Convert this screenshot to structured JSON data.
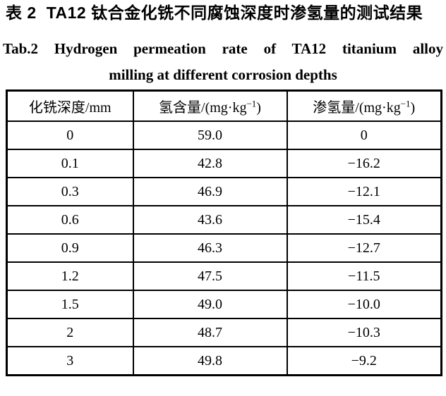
{
  "caption": {
    "zh_label": "表 2",
    "zh_title": "TA12 钛合金化铣不同腐蚀深度时渗氢量的测试结果",
    "en_line1": "Tab.2 Hydrogen permeation rate of TA12 titanium alloy",
    "en_line2": "milling at different corrosion depths"
  },
  "table": {
    "columns": [
      {
        "base": "化铣深度/mm",
        "exp": "",
        "close": ""
      },
      {
        "base": "氢含量/(mg·kg",
        "exp": "−1",
        "close": ")"
      },
      {
        "base": "渗氢量/(mg·kg",
        "exp": "−1",
        "close": ")"
      }
    ],
    "rows": [
      {
        "depth": "0",
        "hydrogen_content": "59.0",
        "permeation": "0"
      },
      {
        "depth": "0.1",
        "hydrogen_content": "42.8",
        "permeation": "−16.2"
      },
      {
        "depth": "0.3",
        "hydrogen_content": "46.9",
        "permeation": "−12.1"
      },
      {
        "depth": "0.6",
        "hydrogen_content": "43.6",
        "permeation": "−15.4"
      },
      {
        "depth": "0.9",
        "hydrogen_content": "46.3",
        "permeation": "−12.7"
      },
      {
        "depth": "1.2",
        "hydrogen_content": "47.5",
        "permeation": "−11.5"
      },
      {
        "depth": "1.5",
        "hydrogen_content": "49.0",
        "permeation": "−10.0"
      },
      {
        "depth": "2",
        "hydrogen_content": "48.7",
        "permeation": "−10.3"
      },
      {
        "depth": "3",
        "hydrogen_content": "49.8",
        "permeation": "−9.2"
      }
    ]
  }
}
